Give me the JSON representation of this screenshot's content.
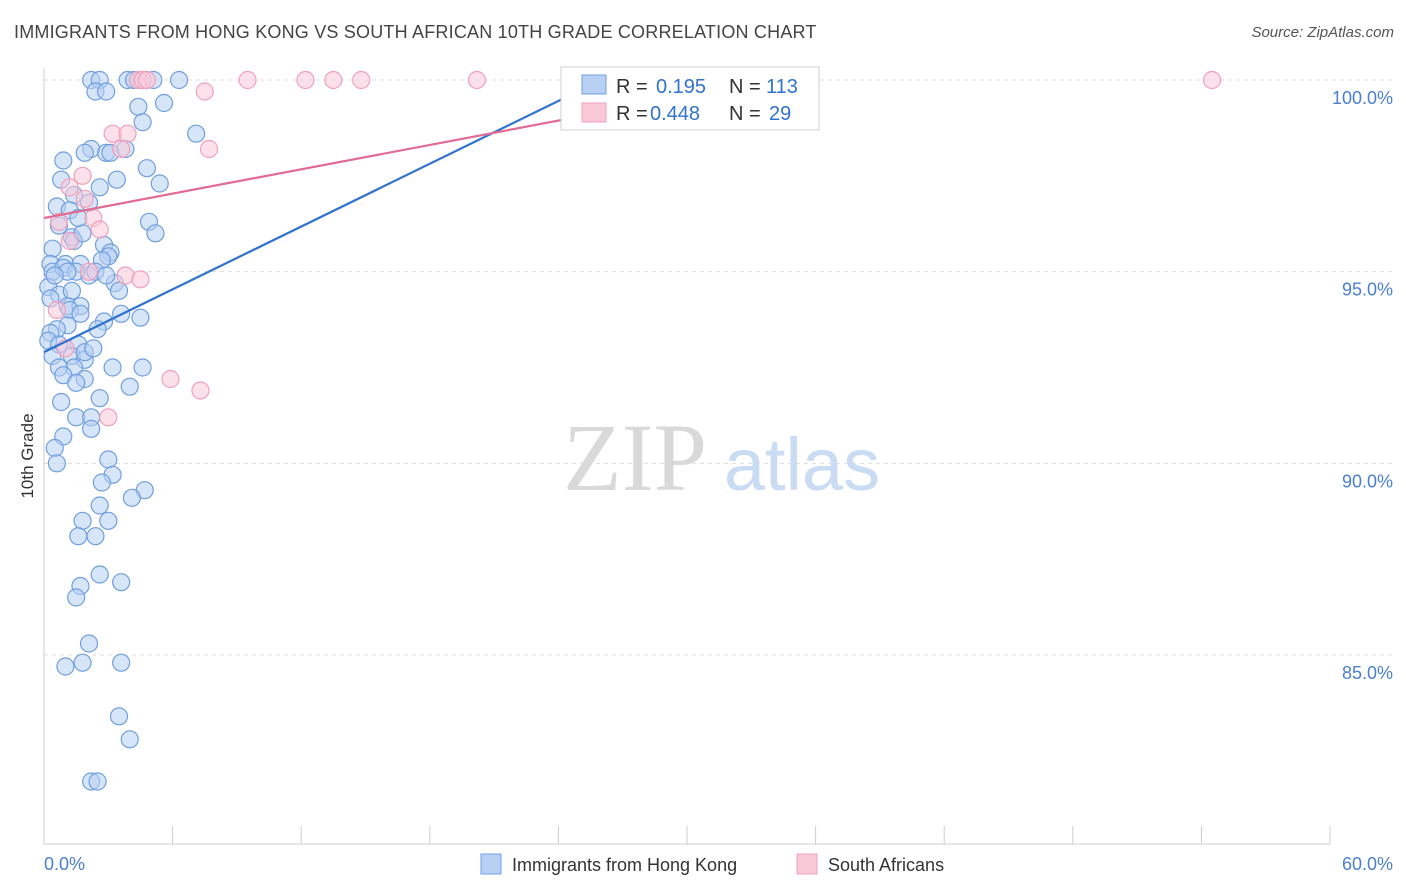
{
  "chart_data": {
    "type": "scatter",
    "title": "IMMIGRANTS FROM HONG KONG VS SOUTH AFRICAN 10TH GRADE CORRELATION CHART",
    "source": "Source: ZipAtlas.com",
    "ylabel": "10th Grade",
    "xlabel": "",
    "xlim": [
      0,
      60
    ],
    "ylim": [
      80.5,
      100.7
    ],
    "x_tick_labels": {
      "left": "0.0%",
      "right": "60.0%"
    },
    "y_ticks": [
      {
        "value": 100,
        "label": "100.0%"
      },
      {
        "value": 95,
        "label": "95.0%"
      },
      {
        "value": 90,
        "label": "90.0%"
      },
      {
        "value": 85,
        "label": "85.0%"
      }
    ],
    "watermark": {
      "zip": "ZIP",
      "atlas": "atlas"
    },
    "legend_position": "bottom-center",
    "stats_box_position": "top-center",
    "series": [
      {
        "name": "Immigrants from Hong Kong",
        "color": "#6f9fe0",
        "fill": "#b7d0f3",
        "line_color": "#2f72cf",
        "r_label": "R =",
        "r_value": "0.195",
        "n_label": "N =",
        "n_value": "113",
        "trend": {
          "x0": 0,
          "y0": 92.9,
          "x1": 26,
          "y1": 100.0
        },
        "points": [
          [
            2.2,
            100
          ],
          [
            2.6,
            100
          ],
          [
            3.9,
            100
          ],
          [
            4.2,
            100
          ],
          [
            5.1,
            100
          ],
          [
            6.3,
            100
          ],
          [
            2.4,
            99.7
          ],
          [
            2.9,
            99.7
          ],
          [
            4.4,
            99.3
          ],
          [
            5.6,
            99.4
          ],
          [
            4.6,
            98.9
          ],
          [
            7.1,
            98.6
          ],
          [
            2.2,
            98.2
          ],
          [
            2.9,
            98.1
          ],
          [
            1.9,
            98.1
          ],
          [
            3.1,
            98.1
          ],
          [
            4.8,
            97.7
          ],
          [
            3.4,
            97.4
          ],
          [
            0.8,
            97.4
          ],
          [
            1.4,
            97.0
          ],
          [
            5.4,
            97.3
          ],
          [
            2.6,
            97.2
          ],
          [
            2.1,
            96.8
          ],
          [
            0.6,
            96.7
          ],
          [
            1.2,
            96.6
          ],
          [
            4.9,
            96.3
          ],
          [
            5.2,
            96.0
          ],
          [
            0.7,
            96.2
          ],
          [
            1.3,
            95.9
          ],
          [
            1.4,
            95.8
          ],
          [
            2.8,
            95.7
          ],
          [
            0.4,
            95.6
          ],
          [
            3.1,
            95.5
          ],
          [
            3.0,
            95.4
          ],
          [
            2.7,
            95.3
          ],
          [
            0.3,
            95.2
          ],
          [
            1.0,
            95.2
          ],
          [
            1.7,
            95.2
          ],
          [
            0.4,
            95.0
          ],
          [
            0.9,
            95.1
          ],
          [
            2.1,
            94.9
          ],
          [
            1.5,
            95.0
          ],
          [
            1.1,
            95.0
          ],
          [
            3.3,
            94.7
          ],
          [
            0.2,
            94.6
          ],
          [
            0.7,
            94.4
          ],
          [
            1.3,
            94.5
          ],
          [
            3.5,
            94.5
          ],
          [
            0.3,
            94.3
          ],
          [
            1.1,
            94.1
          ],
          [
            1.7,
            94.1
          ],
          [
            1.2,
            94.0
          ],
          [
            1.7,
            93.9
          ],
          [
            3.6,
            93.9
          ],
          [
            4.5,
            93.8
          ],
          [
            2.8,
            93.7
          ],
          [
            1.1,
            93.6
          ],
          [
            2.5,
            93.5
          ],
          [
            0.6,
            93.5
          ],
          [
            0.3,
            93.4
          ],
          [
            0.2,
            93.2
          ],
          [
            0.7,
            93.1
          ],
          [
            1.6,
            93.1
          ],
          [
            0.4,
            92.8
          ],
          [
            1.3,
            92.8
          ],
          [
            1.9,
            92.7
          ],
          [
            1.4,
            92.5
          ],
          [
            0.7,
            92.5
          ],
          [
            3.2,
            92.5
          ],
          [
            4.6,
            92.5
          ],
          [
            0.9,
            92.3
          ],
          [
            1.9,
            92.2
          ],
          [
            1.5,
            92.1
          ],
          [
            4.0,
            92.0
          ],
          [
            2.6,
            91.7
          ],
          [
            1.5,
            91.2
          ],
          [
            2.2,
            91.2
          ],
          [
            2.2,
            90.9
          ],
          [
            0.9,
            90.7
          ],
          [
            0.5,
            90.4
          ],
          [
            0.6,
            90.0
          ],
          [
            3.0,
            90.1
          ],
          [
            3.2,
            89.7
          ],
          [
            2.7,
            89.5
          ],
          [
            4.7,
            89.3
          ],
          [
            4.1,
            89.1
          ],
          [
            2.6,
            88.9
          ],
          [
            1.8,
            88.5
          ],
          [
            3.0,
            88.5
          ],
          [
            1.6,
            88.1
          ],
          [
            2.4,
            88.1
          ],
          [
            2.6,
            87.1
          ],
          [
            3.6,
            86.9
          ],
          [
            1.7,
            86.8
          ],
          [
            1.5,
            86.5
          ],
          [
            2.1,
            85.3
          ],
          [
            1.0,
            84.7
          ],
          [
            1.8,
            84.8
          ],
          [
            3.6,
            84.8
          ],
          [
            3.5,
            83.4
          ],
          [
            4.0,
            82.8
          ],
          [
            2.2,
            81.7
          ],
          [
            2.5,
            81.7
          ],
          [
            0.9,
            97.9
          ],
          [
            1.8,
            96.0
          ],
          [
            2.4,
            95.0
          ],
          [
            3.8,
            98.2
          ],
          [
            1.6,
            96.4
          ],
          [
            0.5,
            94.9
          ],
          [
            2.9,
            94.9
          ],
          [
            1.9,
            92.9
          ],
          [
            0.8,
            91.6
          ],
          [
            2.3,
            93.0
          ]
        ]
      },
      {
        "name": "South Africans",
        "color": "#f0a0ba",
        "fill": "#f9c9d8",
        "line_color": "#e26b94",
        "r_label": "R =",
        "r_value": "0.448",
        "n_label": "N =",
        "n_value": "29",
        "trend": {
          "x0": 0,
          "y0": 96.4,
          "x1": 34,
          "y1": 100.0
        },
        "points": [
          [
            4.4,
            100
          ],
          [
            4.6,
            100
          ],
          [
            4.8,
            100
          ],
          [
            9.5,
            100
          ],
          [
            12.2,
            100
          ],
          [
            13.5,
            100
          ],
          [
            14.8,
            100
          ],
          [
            20.2,
            100
          ],
          [
            54.5,
            100
          ],
          [
            7.5,
            99.7
          ],
          [
            3.2,
            98.6
          ],
          [
            3.9,
            98.6
          ],
          [
            3.6,
            98.2
          ],
          [
            7.7,
            98.2
          ],
          [
            1.8,
            97.5
          ],
          [
            1.2,
            97.2
          ],
          [
            1.9,
            96.9
          ],
          [
            0.7,
            96.3
          ],
          [
            2.3,
            96.4
          ],
          [
            2.6,
            96.1
          ],
          [
            1.2,
            95.8
          ],
          [
            2.1,
            95.0
          ],
          [
            3.8,
            94.9
          ],
          [
            4.5,
            94.8
          ],
          [
            0.6,
            94.0
          ],
          [
            5.9,
            92.2
          ],
          [
            7.3,
            91.9
          ],
          [
            3.0,
            91.2
          ],
          [
            1.0,
            93.0
          ]
        ]
      }
    ]
  }
}
